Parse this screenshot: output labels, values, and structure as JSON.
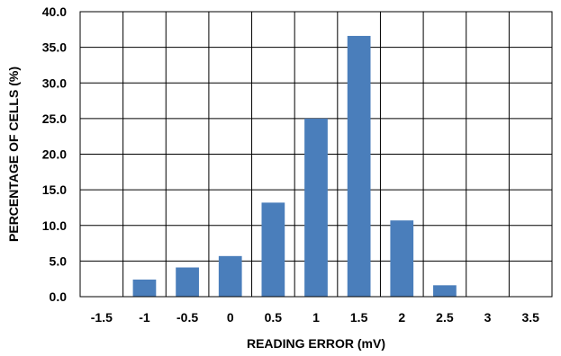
{
  "chart_data": {
    "type": "bar",
    "title": "",
    "xlabel": "READING ERROR (mV)",
    "ylabel": "PERCENTAGE OF CELLS (%)",
    "categories": [
      "-1.5",
      "-1",
      "-0.5",
      "0",
      "0.5",
      "1",
      "1.5",
      "2",
      "2.5",
      "3",
      "3.5"
    ],
    "values": [
      0,
      2.4,
      4.1,
      5.7,
      13.2,
      25.0,
      36.6,
      10.7,
      1.6,
      0,
      0
    ],
    "ylim": [
      0,
      40
    ],
    "yticks": [
      "0.0",
      "5.0",
      "10.0",
      "15.0",
      "20.0",
      "25.0",
      "30.0",
      "35.0",
      "40.0"
    ],
    "grid": true,
    "bar_color": "#4a7ebb"
  }
}
